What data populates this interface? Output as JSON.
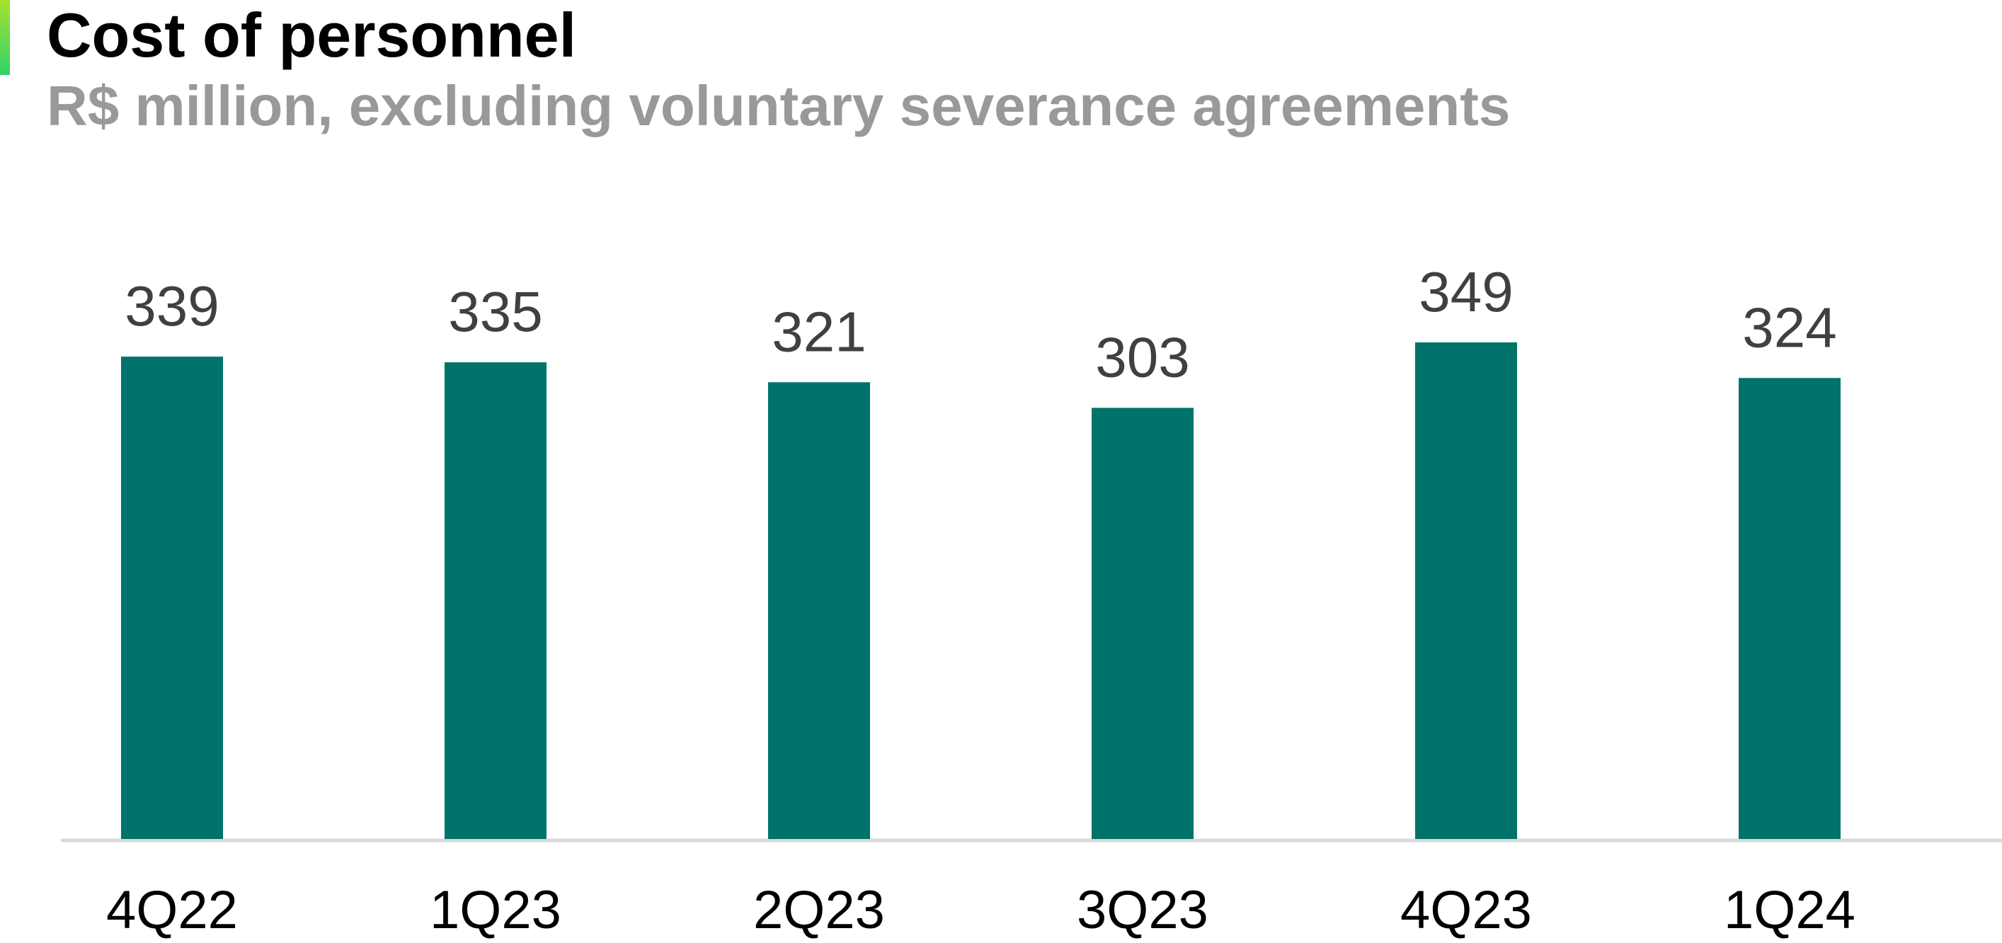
{
  "title": "Cost of personnel",
  "subtitle": "R$ million, excluding voluntary severance agreements",
  "colors": {
    "bar": "#00736B",
    "axis": "#D9D9D9",
    "label": "#404040",
    "tick": "#000000",
    "accent_top": "#A6E22E",
    "accent_bottom": "#2FD36B"
  },
  "chart_data": {
    "type": "bar",
    "title": "Cost of personnel",
    "subtitle": "R$ million, excluding voluntary severance agreements",
    "categories": [
      "4Q22",
      "1Q23",
      "2Q23",
      "3Q23",
      "4Q23",
      "1Q24"
    ],
    "values": [
      339,
      335,
      321,
      303,
      349,
      324
    ],
    "data_labels": [
      "339",
      "335",
      "321",
      "303",
      "349",
      "324"
    ],
    "xlabel": "",
    "ylabel": "",
    "ylim": [
      0,
      349
    ],
    "grid": false,
    "legend": "none"
  }
}
